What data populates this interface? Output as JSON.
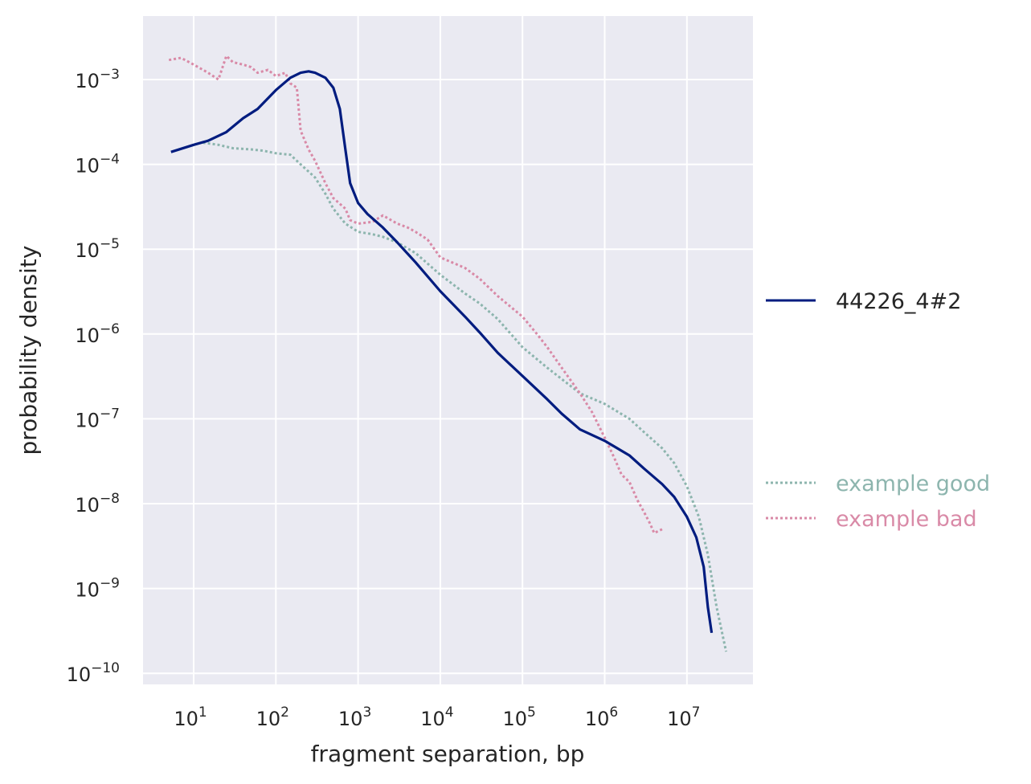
{
  "chart_data": {
    "type": "line",
    "title": "",
    "xlabel": "fragment separation, bp",
    "ylabel": "probability density",
    "xscale": "log",
    "yscale": "log",
    "xlim": [
      2.2,
      68000000
    ],
    "ylim": [
      6e-11,
      0.006
    ],
    "grid": true,
    "legend_placement": "right",
    "x_ticks": [
      {
        "base": "10",
        "exp": "1",
        "value": 10
      },
      {
        "base": "10",
        "exp": "2",
        "value": 100
      },
      {
        "base": "10",
        "exp": "3",
        "value": 1000
      },
      {
        "base": "10",
        "exp": "4",
        "value": 10000
      },
      {
        "base": "10",
        "exp": "5",
        "value": 100000
      },
      {
        "base": "10",
        "exp": "6",
        "value": 1000000
      },
      {
        "base": "10",
        "exp": "7",
        "value": 10000000
      }
    ],
    "y_ticks": [
      {
        "base": "10",
        "exp": "−3",
        "value": 0.001
      },
      {
        "base": "10",
        "exp": "−4",
        "value": 0.0001
      },
      {
        "base": "10",
        "exp": "−5",
        "value": 1e-05
      },
      {
        "base": "10",
        "exp": "−6",
        "value": 1e-06
      },
      {
        "base": "10",
        "exp": "−7",
        "value": 1e-07
      },
      {
        "base": "10",
        "exp": "−8",
        "value": 1e-08
      },
      {
        "base": "10",
        "exp": "−9",
        "value": 1e-09
      },
      {
        "base": "10",
        "exp": "−10",
        "value": 1e-10
      }
    ],
    "series": [
      {
        "name": "44226_4#2",
        "color": "#001c7f",
        "style": "solid",
        "x": [
          5.3,
          10,
          15,
          25,
          40,
          60,
          100,
          150,
          200,
          250,
          300,
          400,
          500,
          600,
          700,
          800,
          1000,
          1300,
          2000,
          3000,
          5000,
          10000,
          20000,
          30000,
          50000,
          100000,
          200000,
          300000,
          500000,
          1000000,
          2000000,
          3000000,
          5000000,
          7000000,
          10000000,
          13000000,
          16000000,
          18000000,
          20000000
        ],
        "y": [
          0.00014,
          0.00017,
          0.00019,
          0.00024,
          0.00035,
          0.00045,
          0.00075,
          0.00105,
          0.0012,
          0.00125,
          0.0012,
          0.00105,
          0.0008,
          0.00045,
          0.00015,
          6e-05,
          3.5e-05,
          2.6e-05,
          1.8e-05,
          1.2e-05,
          7e-06,
          3.2e-06,
          1.6e-06,
          1.05e-06,
          6e-07,
          3.2e-07,
          1.7e-07,
          1.15e-07,
          7.5e-08,
          5.5e-08,
          3.7e-08,
          2.6e-08,
          1.7e-08,
          1.2e-08,
          7e-09,
          4e-09,
          1.8e-09,
          6e-10,
          3e-10
        ]
      },
      {
        "name": "example good",
        "color": "#8db5ae",
        "style": "dotted",
        "x": [
          13,
          20,
          30,
          50,
          70,
          100,
          150,
          200,
          300,
          400,
          500,
          700,
          1000,
          1500,
          2000,
          3000,
          5000,
          10000,
          20000,
          30000,
          50000,
          100000,
          200000,
          500000,
          1000000,
          2000000,
          3000000,
          5000000,
          7000000,
          10000000,
          14000000,
          18000000,
          23000000,
          30000000
        ],
        "y": [
          0.00018,
          0.00017,
          0.000155,
          0.00015,
          0.000145,
          0.000135,
          0.00013,
          0.0001,
          7e-05,
          4.5e-05,
          3e-05,
          2e-05,
          1.6e-05,
          1.5e-05,
          1.4e-05,
          1.2e-05,
          9e-06,
          5e-06,
          3e-06,
          2.3e-06,
          1.5e-06,
          7e-07,
          4e-07,
          2e-07,
          1.5e-07,
          1e-07,
          7e-08,
          4.5e-08,
          3e-08,
          1.6e-08,
          7e-09,
          2.5e-09,
          6e-10,
          1.8e-10
        ]
      },
      {
        "name": "example bad",
        "color": "#d98aa7",
        "style": "dotted",
        "x": [
          5,
          7,
          10,
          15,
          20,
          25,
          30,
          40,
          50,
          60,
          80,
          100,
          130,
          150,
          180,
          200,
          250,
          300,
          400,
          500,
          700,
          800,
          1000,
          1500,
          2000,
          3000,
          4000,
          5000,
          7000,
          10000,
          20000,
          30000,
          50000,
          100000,
          150000,
          200000,
          300000,
          500000,
          700000,
          1000000,
          1300000,
          1600000,
          2000000,
          2500000,
          3000000,
          3500000,
          4000000,
          5000000
        ],
        "y": [
          0.0017,
          0.0018,
          0.0015,
          0.0012,
          0.001,
          0.0019,
          0.0016,
          0.0015,
          0.0014,
          0.0012,
          0.0013,
          0.0011,
          0.0012,
          0.0009,
          0.0008,
          0.00025,
          0.00015,
          0.00011,
          6e-05,
          4e-05,
          3e-05,
          2.2e-05,
          2e-05,
          2.1e-05,
          2.5e-05,
          2e-05,
          1.8e-05,
          1.6e-05,
          1.3e-05,
          8e-06,
          6e-06,
          4.5e-06,
          2.8e-06,
          1.6e-06,
          1e-06,
          7e-07,
          4e-07,
          2e-07,
          1.2e-07,
          6e-08,
          3.5e-08,
          2.2e-08,
          1.8e-08,
          1.1e-08,
          8e-09,
          6e-09,
          4.5e-09,
          5e-09
        ]
      }
    ]
  }
}
